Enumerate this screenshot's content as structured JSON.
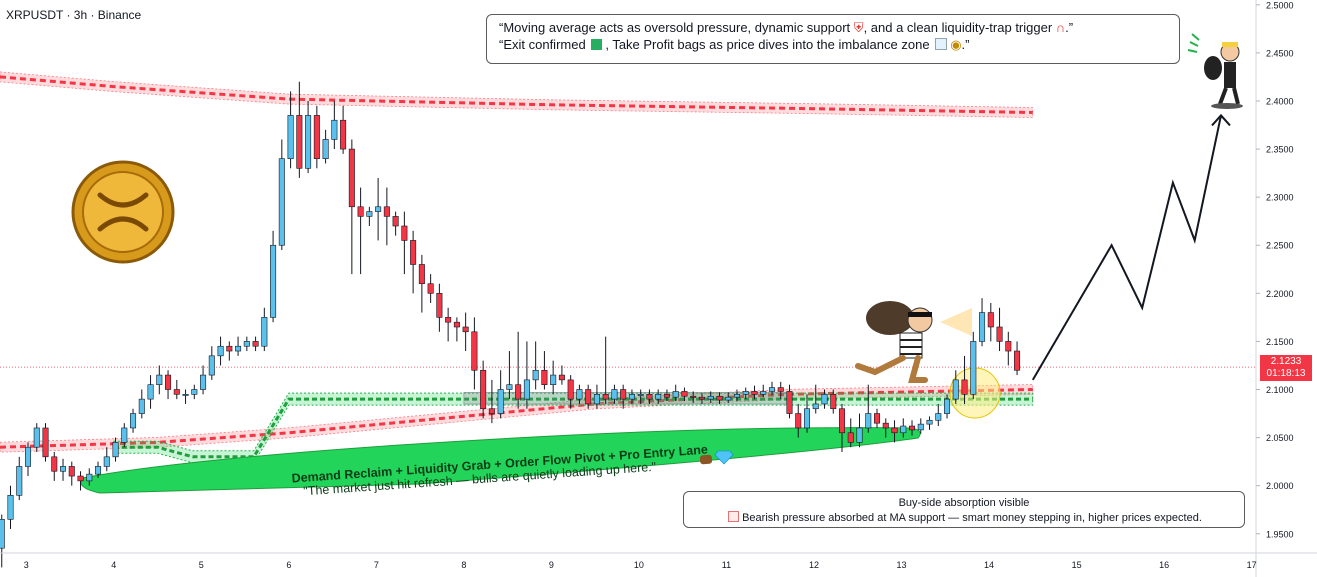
{
  "header": {
    "title": "XRPUSDT · 3h · Binance"
  },
  "callout_top": {
    "line1": "“Moving average acts as oversold pressure, dynamic support",
    "line1b": ", and a clean liquidity-trap trigger",
    "line2": "“Exit confirmed",
    "line2b": ", Take Profit bags as price dives into the imbalance zone"
  },
  "callout_bottom": {
    "line1": "Buy-side absorption visible",
    "line2": "Bearish pressure absorbed at MA support — smart money stepping in, higher prices expected."
  },
  "zone_label": {
    "line1": "Demand Reclaim + Liquidity Grab + Order Flow Pivot + Pro Entry Lane",
    "line2": "\"The market just hit refresh — bulls are quietly loading up here.\""
  },
  "price_label": {
    "price": "2.1233",
    "countdown": "01:18:13"
  },
  "colors": {
    "up": "#5bc0eb",
    "down": "#f23645",
    "zone_green": "#22d55a",
    "ma_red": "#f23645"
  },
  "icons": [
    "ripple-coin-icon",
    "thief-with-bag-icon",
    "thief-on-hoverboard-icon",
    "shield-emoji-icon",
    "magnet-emoji-icon",
    "check-emoji-icon",
    "chart-down-emoji-icon",
    "money-bag-emoji-icon",
    "bear-emoji-icon",
    "gem-emoji-icon"
  ],
  "chart_data": {
    "type": "candlestick",
    "title": "XRPUSDT · 3h · Binance",
    "y_ticks": [
      "1.9500",
      "2.0000",
      "2.0500",
      "2.1000",
      "2.1500",
      "2.2000",
      "2.2500",
      "2.3000",
      "2.3500",
      "2.4000",
      "2.4500",
      "2.5000"
    ],
    "ylim": [
      1.93,
      2.505
    ],
    "x_ticks": [
      "3",
      "4",
      "5",
      "6",
      "7",
      "8",
      "9",
      "10",
      "11",
      "12",
      "13",
      "14",
      "15",
      "16",
      "17"
    ],
    "xlim": [
      2.7,
      17.05
    ],
    "current_price": 2.1233,
    "candles": [
      [
        2.72,
        1.935,
        1.965,
        1.915,
        1.97
      ],
      [
        2.82,
        1.965,
        1.99,
        1.955,
        2.0
      ],
      [
        2.92,
        1.99,
        2.02,
        1.985,
        2.03
      ],
      [
        3.02,
        2.02,
        2.04,
        2.01,
        2.045
      ],
      [
        3.12,
        2.04,
        2.06,
        2.035,
        2.065
      ],
      [
        3.22,
        2.06,
        2.03,
        2.025,
        2.065
      ],
      [
        3.32,
        2.03,
        2.015,
        2.005,
        2.035
      ],
      [
        3.42,
        2.015,
        2.02,
        2.005,
        2.028
      ],
      [
        3.52,
        2.02,
        2.01,
        2.0,
        2.025
      ],
      [
        3.62,
        2.01,
        2.005,
        1.995,
        2.015
      ],
      [
        3.72,
        2.005,
        2.012,
        2.0,
        2.018
      ],
      [
        3.82,
        2.012,
        2.02,
        2.008,
        2.025
      ],
      [
        3.92,
        2.02,
        2.03,
        2.015,
        2.04
      ],
      [
        4.02,
        2.03,
        2.045,
        2.025,
        2.05
      ],
      [
        4.12,
        2.045,
        2.06,
        2.04,
        2.065
      ],
      [
        4.22,
        2.06,
        2.075,
        2.055,
        2.08
      ],
      [
        4.32,
        2.075,
        2.09,
        2.07,
        2.1
      ],
      [
        4.42,
        2.09,
        2.105,
        2.08,
        2.115
      ],
      [
        4.52,
        2.105,
        2.115,
        2.095,
        2.125
      ],
      [
        4.62,
        2.115,
        2.1,
        2.09,
        2.12
      ],
      [
        4.72,
        2.1,
        2.095,
        2.09,
        2.11
      ],
      [
        4.82,
        2.095,
        2.095,
        2.085,
        2.1
      ],
      [
        4.92,
        2.095,
        2.1,
        2.09,
        2.105
      ],
      [
        5.02,
        2.1,
        2.115,
        2.095,
        2.125
      ],
      [
        5.12,
        2.115,
        2.135,
        2.11,
        2.145
      ],
      [
        5.22,
        2.135,
        2.145,
        2.125,
        2.155
      ],
      [
        5.32,
        2.145,
        2.14,
        2.13,
        2.15
      ],
      [
        5.42,
        2.14,
        2.145,
        2.135,
        2.155
      ],
      [
        5.52,
        2.145,
        2.15,
        2.14,
        2.155
      ],
      [
        5.62,
        2.15,
        2.145,
        2.14,
        2.155
      ],
      [
        5.72,
        2.145,
        2.175,
        2.14,
        2.185
      ],
      [
        5.82,
        2.175,
        2.25,
        2.17,
        2.265
      ],
      [
        5.92,
        2.25,
        2.34,
        2.245,
        2.36
      ],
      [
        6.02,
        2.34,
        2.385,
        2.33,
        2.41
      ],
      [
        6.12,
        2.385,
        2.33,
        2.32,
        2.42
      ],
      [
        6.22,
        2.33,
        2.385,
        2.325,
        2.4
      ],
      [
        6.32,
        2.385,
        2.34,
        2.33,
        2.395
      ],
      [
        6.42,
        2.34,
        2.36,
        2.335,
        2.37
      ],
      [
        6.52,
        2.36,
        2.38,
        2.35,
        2.4
      ],
      [
        6.62,
        2.38,
        2.35,
        2.345,
        2.395
      ],
      [
        6.72,
        2.35,
        2.29,
        2.22,
        2.36
      ],
      [
        6.82,
        2.29,
        2.28,
        2.22,
        2.31
      ],
      [
        6.92,
        2.28,
        2.285,
        2.27,
        2.29
      ],
      [
        7.02,
        2.285,
        2.29,
        2.255,
        2.32
      ],
      [
        7.12,
        2.29,
        2.28,
        2.25,
        2.31
      ],
      [
        7.22,
        2.28,
        2.27,
        2.26,
        2.285
      ],
      [
        7.32,
        2.27,
        2.255,
        2.22,
        2.285
      ],
      [
        7.42,
        2.255,
        2.23,
        2.2,
        2.265
      ],
      [
        7.52,
        2.23,
        2.21,
        2.18,
        2.24
      ],
      [
        7.62,
        2.21,
        2.2,
        2.19,
        2.22
      ],
      [
        7.72,
        2.2,
        2.175,
        2.16,
        2.21
      ],
      [
        7.82,
        2.175,
        2.17,
        2.15,
        2.185
      ],
      [
        7.92,
        2.17,
        2.165,
        2.15,
        2.175
      ],
      [
        8.02,
        2.165,
        2.16,
        2.14,
        2.18
      ],
      [
        8.12,
        2.16,
        2.12,
        2.1,
        2.175
      ],
      [
        8.22,
        2.12,
        2.08,
        2.07,
        2.13
      ],
      [
        8.32,
        2.08,
        2.075,
        2.065,
        2.11
      ],
      [
        8.42,
        2.075,
        2.1,
        2.07,
        2.12
      ],
      [
        8.52,
        2.1,
        2.105,
        2.09,
        2.14
      ],
      [
        8.62,
        2.105,
        2.09,
        2.08,
        2.16
      ],
      [
        8.72,
        2.09,
        2.11,
        2.08,
        2.15
      ],
      [
        8.82,
        2.11,
        2.12,
        2.1,
        2.15
      ],
      [
        8.92,
        2.12,
        2.105,
        2.1,
        2.14
      ],
      [
        9.02,
        2.105,
        2.115,
        2.095,
        2.13
      ],
      [
        9.12,
        2.115,
        2.11,
        2.105,
        2.125
      ],
      [
        9.22,
        2.11,
        2.09,
        2.08,
        2.115
      ],
      [
        9.32,
        2.09,
        2.1,
        2.085,
        2.105
      ],
      [
        9.42,
        2.1,
        2.085,
        2.08,
        2.105
      ],
      [
        9.52,
        2.085,
        2.095,
        2.08,
        2.105
      ],
      [
        9.62,
        2.095,
        2.09,
        2.085,
        2.155
      ],
      [
        9.72,
        2.09,
        2.1,
        2.085,
        2.105
      ],
      [
        9.82,
        2.1,
        2.09,
        2.08,
        2.105
      ],
      [
        9.92,
        2.09,
        2.095,
        2.085,
        2.1
      ],
      [
        10.02,
        2.095,
        2.095,
        2.085,
        2.1
      ],
      [
        10.12,
        2.095,
        2.09,
        2.085,
        2.1
      ],
      [
        10.22,
        2.09,
        2.095,
        2.085,
        2.1
      ],
      [
        10.32,
        2.095,
        2.092,
        2.088,
        2.1
      ],
      [
        10.42,
        2.092,
        2.098,
        2.088,
        2.105
      ],
      [
        10.52,
        2.098,
        2.093,
        2.088,
        2.102
      ],
      [
        10.62,
        2.093,
        2.092,
        2.086,
        2.098
      ],
      [
        10.72,
        2.092,
        2.09,
        2.085,
        2.096
      ],
      [
        10.82,
        2.09,
        2.093,
        2.086,
        2.098
      ],
      [
        10.92,
        2.093,
        2.089,
        2.085,
        2.097
      ],
      [
        11.02,
        2.089,
        2.092,
        2.086,
        2.097
      ],
      [
        11.12,
        2.092,
        2.095,
        2.088,
        2.1
      ],
      [
        11.22,
        2.095,
        2.098,
        2.09,
        2.102
      ],
      [
        11.32,
        2.098,
        2.095,
        2.09,
        2.104
      ],
      [
        11.42,
        2.095,
        2.098,
        2.092,
        2.105
      ],
      [
        11.52,
        2.098,
        2.102,
        2.094,
        2.108
      ],
      [
        11.62,
        2.102,
        2.098,
        2.09,
        2.108
      ],
      [
        11.72,
        2.098,
        2.075,
        2.07,
        2.105
      ],
      [
        11.82,
        2.075,
        2.06,
        2.05,
        2.085
      ],
      [
        11.92,
        2.06,
        2.08,
        2.055,
        2.095
      ],
      [
        12.02,
        2.08,
        2.085,
        2.075,
        2.105
      ],
      [
        12.12,
        2.085,
        2.095,
        2.08,
        2.1
      ],
      [
        12.22,
        2.095,
        2.08,
        2.075,
        2.1
      ],
      [
        12.32,
        2.08,
        2.055,
        2.035,
        2.085
      ],
      [
        12.42,
        2.055,
        2.045,
        2.04,
        2.07
      ],
      [
        12.52,
        2.045,
        2.06,
        2.04,
        2.075
      ],
      [
        12.62,
        2.06,
        2.075,
        2.055,
        2.105
      ],
      [
        12.72,
        2.075,
        2.065,
        2.06,
        2.08
      ],
      [
        12.82,
        2.065,
        2.06,
        2.05,
        2.07
      ],
      [
        12.92,
        2.06,
        2.055,
        2.045,
        2.068
      ],
      [
        13.02,
        2.055,
        2.062,
        2.05,
        2.07
      ],
      [
        13.12,
        2.062,
        2.058,
        2.052,
        2.068
      ],
      [
        13.22,
        2.058,
        2.064,
        2.054,
        2.07
      ],
      [
        13.32,
        2.064,
        2.068,
        2.058,
        2.072
      ],
      [
        13.42,
        2.068,
        2.075,
        2.062,
        2.085
      ],
      [
        13.52,
        2.075,
        2.09,
        2.07,
        2.095
      ],
      [
        13.62,
        2.09,
        2.11,
        2.085,
        2.12
      ],
      [
        13.72,
        2.11,
        2.095,
        2.085,
        2.135
      ],
      [
        13.82,
        2.095,
        2.15,
        2.09,
        2.16
      ],
      [
        13.92,
        2.15,
        2.18,
        2.145,
        2.195
      ],
      [
        14.02,
        2.18,
        2.165,
        2.15,
        2.19
      ],
      [
        14.12,
        2.165,
        2.15,
        2.14,
        2.185
      ],
      [
        14.22,
        2.15,
        2.14,
        2.125,
        2.16
      ],
      [
        14.32,
        2.14,
        2.12,
        2.115,
        2.15
      ]
    ],
    "ma_upper": [
      [
        2.7,
        2.425
      ],
      [
        4.0,
        2.415
      ],
      [
        6.0,
        2.402
      ],
      [
        9.0,
        2.396
      ],
      [
        12.0,
        2.392
      ],
      [
        14.5,
        2.388
      ]
    ],
    "ma_lower": [
      [
        2.7,
        2.04
      ],
      [
        4.5,
        2.045
      ],
      [
        6.0,
        2.055
      ],
      [
        9.5,
        2.085
      ],
      [
        11.7,
        2.095
      ],
      [
        14.5,
        2.1
      ]
    ],
    "green_lane": [
      [
        4.0,
        2.04
      ],
      [
        4.5,
        2.04
      ],
      [
        4.9,
        2.03
      ],
      [
        5.6,
        2.03
      ],
      [
        5.8,
        2.06
      ],
      [
        6.0,
        2.09
      ],
      [
        14.5,
        2.09
      ]
    ],
    "projection": [
      [
        14.5,
        2.11
      ],
      [
        15.4,
        2.25
      ],
      [
        15.75,
        2.185
      ],
      [
        16.1,
        2.315
      ],
      [
        16.35,
        2.255
      ],
      [
        16.65,
        2.385
      ]
    ]
  }
}
